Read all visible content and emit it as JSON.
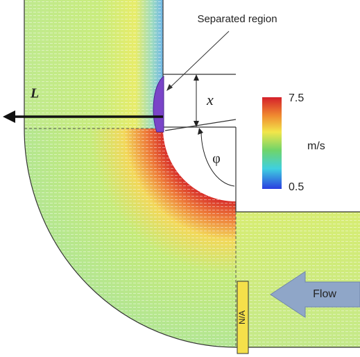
{
  "figure": {
    "labels": {
      "separated_region": "Separated region",
      "length": "L",
      "offset": "x",
      "angle": "φ",
      "flow": "Flow",
      "plug": "N/A"
    },
    "colorbar": {
      "max": 7.5,
      "unit": "m/s",
      "min": 0.5
    }
  }
}
